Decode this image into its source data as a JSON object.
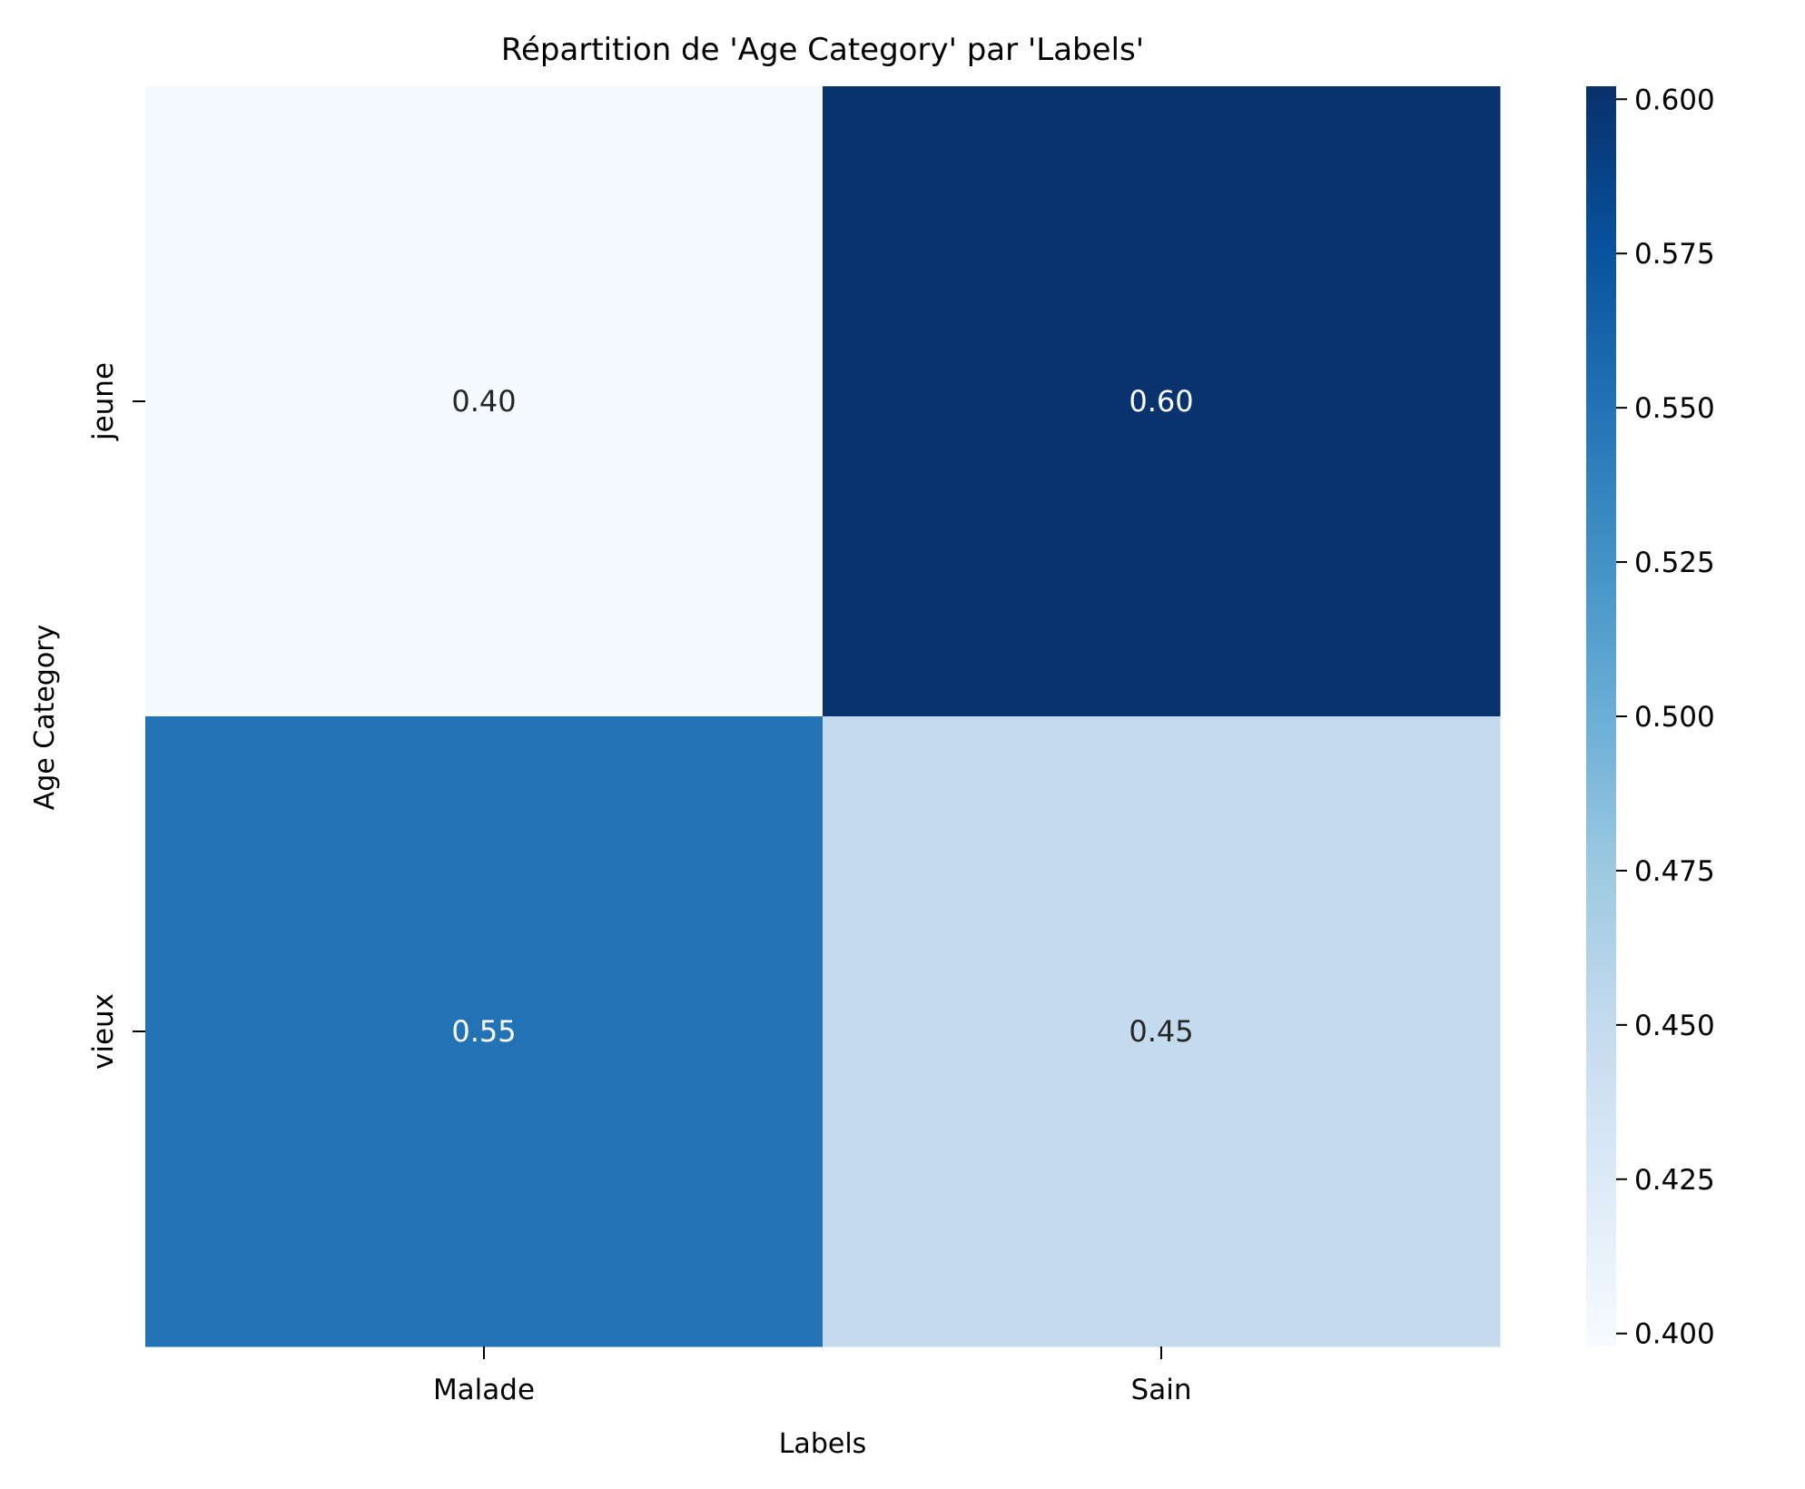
{
  "chart_data": {
    "type": "heatmap",
    "title": "Répartition de 'Age Category' par 'Labels'",
    "xlabel": "Labels",
    "ylabel": "Age Category",
    "x_categories": [
      "Malade",
      "Sain"
    ],
    "y_categories": [
      "jeune",
      "vieux"
    ],
    "values": [
      [
        0.4,
        0.6
      ],
      [
        0.55,
        0.45
      ]
    ],
    "annotations": [
      [
        "0.40",
        "0.60"
      ],
      [
        "0.55",
        "0.45"
      ]
    ],
    "colormap": "Blues",
    "colorbar": {
      "vmin": 0.3979,
      "vmax": 0.6021,
      "ticks": [
        "0.400",
        "0.425",
        "0.450",
        "0.475",
        "0.500",
        "0.525",
        "0.550",
        "0.575",
        "0.600"
      ]
    },
    "text_color_light": "#ffffff",
    "text_color_dark": "#262626"
  }
}
